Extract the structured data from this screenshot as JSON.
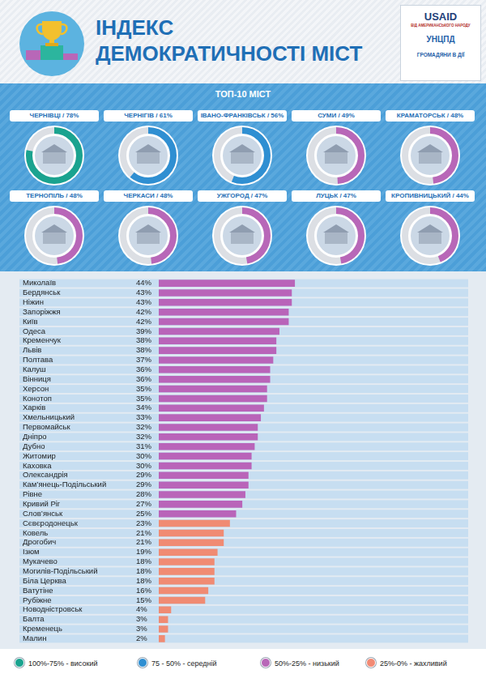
{
  "header": {
    "title": [
      "ІНДЕКС",
      "ДЕМОКРАТИЧНОСТІ МІСТ"
    ],
    "logos": [
      "USAID",
      "ВІД АМЕРИКАНСЬКОГО НАРОДУ",
      "УНЦПД",
      "ГРОМАДЯНИ В ДІЇ"
    ]
  },
  "top10": {
    "title": "ТОП-10 МІСТ",
    "cities": [
      {
        "label": "ЧЕРНІВЦІ / 78%",
        "value": 78,
        "color": "#1aa38f"
      },
      {
        "label": "ЧЕРНІГІВ / 61%",
        "value": 61,
        "color": "#2f8fd2"
      },
      {
        "label": "ІВАНО-ФРАНКІВСЬК / 56%",
        "value": 56,
        "color": "#2f8fd2"
      },
      {
        "label": "СУМИ / 49%",
        "value": 49,
        "color": "#b867b8"
      },
      {
        "label": "КРАМАТОРСЬК / 48%",
        "value": 48,
        "color": "#b867b8"
      },
      {
        "label": "ТЕРНОПІЛЬ / 48%",
        "value": 48,
        "color": "#b867b8"
      },
      {
        "label": "ЧЕРКАСИ / 48%",
        "value": 48,
        "color": "#b867b8"
      },
      {
        "label": "УЖГОРОД / 47%",
        "value": 47,
        "color": "#b867b8"
      },
      {
        "label": "ЛУЦЬК / 47%",
        "value": 47,
        "color": "#b867b8"
      },
      {
        "label": "КРОПИВНИЦЬКИЙ / 44%",
        "value": 44,
        "color": "#b867b8"
      }
    ]
  },
  "chart_data": {
    "type": "bar",
    "orientation": "horizontal",
    "grid": false,
    "tick_labels": "y",
    "data_labels": true,
    "xlim": [
      0,
      100
    ],
    "categories": [
      "Миколаїв",
      "Бердянськ",
      "Ніжин",
      "Запоріжжя",
      "Київ",
      "Одеса",
      "Кременчук",
      "Львів",
      "Полтава",
      "Калуш",
      "Вінниця",
      "Херсон",
      "Конотоп",
      "Харків",
      "Хмельницький",
      "Первомайськ",
      "Дніпро",
      "Дубно",
      "Житомир",
      "Каховка",
      "Олександрія",
      "Кам’янець-Подільський",
      "Рівне",
      "Кривий Ріг",
      "Слов’янськ",
      "Сєвєродонецьк",
      "Ковель",
      "Дрогобич",
      "Ізюм",
      "Мукачево",
      "Могилів-Подільський",
      "Біла Церква",
      "Ватутіне",
      "Рубіжне",
      "Новодністровськ",
      "Балта",
      "Кременець",
      "Малин"
    ],
    "values": [
      44,
      43,
      43,
      42,
      42,
      39,
      38,
      38,
      37,
      36,
      36,
      35,
      35,
      34,
      33,
      32,
      32,
      31,
      30,
      30,
      29,
      29,
      28,
      27,
      25,
      23,
      21,
      21,
      19,
      18,
      18,
      18,
      16,
      15,
      4,
      3,
      3,
      2
    ],
    "value_labels": [
      "44%",
      "43%",
      "43%",
      "42%",
      "42%",
      "39%",
      "38%",
      "38%",
      "37%",
      "36%",
      "36%",
      "35%",
      "35%",
      "34%",
      "33%",
      "32%",
      "32%",
      "31%",
      "30%",
      "30%",
      "29%",
      "29%",
      "28%",
      "27%",
      "25%",
      "23%",
      "21%",
      "21%",
      "19%",
      "18%",
      "18%",
      "18%",
      "16%",
      "15%",
      "4%",
      "3%",
      "3%",
      "2%"
    ],
    "colors": [
      "#b964b9",
      "#b964b9",
      "#b964b9",
      "#b964b9",
      "#b964b9",
      "#b964b9",
      "#b964b9",
      "#b964b9",
      "#b964b9",
      "#b964b9",
      "#b964b9",
      "#b964b9",
      "#b964b9",
      "#b964b9",
      "#b964b9",
      "#b964b9",
      "#b964b9",
      "#b964b9",
      "#b964b9",
      "#b964b9",
      "#b964b9",
      "#b964b9",
      "#b964b9",
      "#b964b9",
      "#b964b9",
      "#f08b73",
      "#f08b73",
      "#f08b73",
      "#f08b73",
      "#f08b73",
      "#f08b73",
      "#f08b73",
      "#f08b73",
      "#f08b73",
      "#f08b73",
      "#f08b73",
      "#f08b73",
      "#f08b73"
    ]
  },
  "legend_scale": [
    {
      "label": "100%-75% - високий",
      "color": "#1aa38f"
    },
    {
      "label": "75 - 50% - середній",
      "color": "#2f8fd2"
    },
    {
      "label": "50%-25% - низький",
      "color": "#b867b8"
    },
    {
      "label": "25%-0% - жахливий",
      "color": "#f28a74"
    }
  ]
}
